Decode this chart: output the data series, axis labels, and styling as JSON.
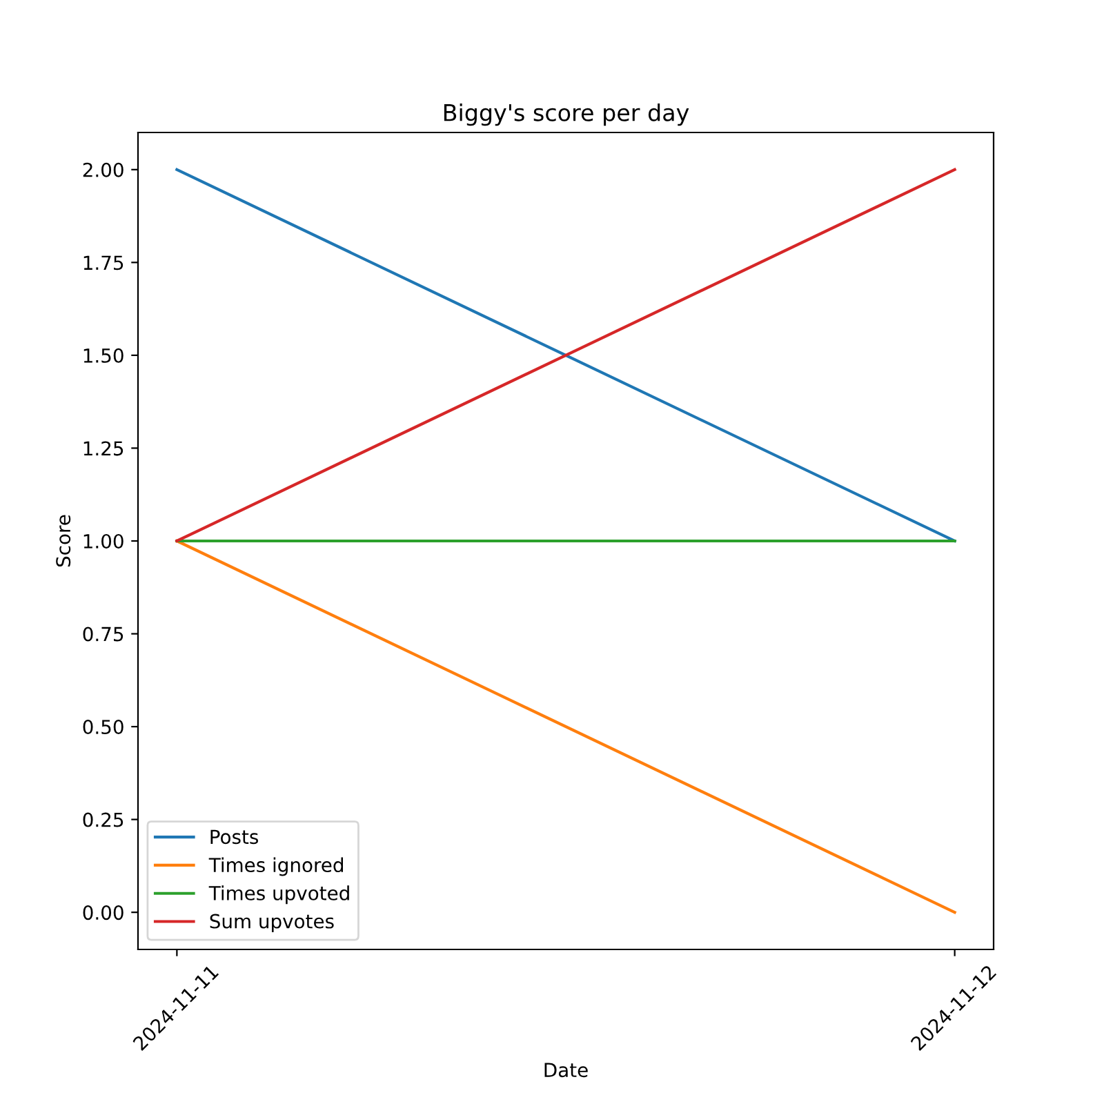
{
  "chart_data": {
    "type": "line",
    "title": "Biggy's score per day",
    "xlabel": "Date",
    "ylabel": "Score",
    "x": [
      "2024-11-11",
      "2024-11-12"
    ],
    "xlim": [
      "2024-11-10T22:48",
      "2024-11-12T01:12"
    ],
    "xticks": [
      {
        "value": "2024-11-11",
        "label": "2024-11-11"
      },
      {
        "value": "2024-11-12",
        "label": "2024-11-12"
      }
    ],
    "ylim": [
      -0.1,
      2.1
    ],
    "yticks": [
      {
        "value": 0,
        "label": "0.00"
      },
      {
        "value": 0.25,
        "label": "0.25"
      },
      {
        "value": 0.5,
        "label": "0.50"
      },
      {
        "value": 0.75,
        "label": "0.75"
      },
      {
        "value": 1,
        "label": "1.00"
      },
      {
        "value": 1.25,
        "label": "1.25"
      },
      {
        "value": 1.5,
        "label": "1.50"
      },
      {
        "value": 1.75,
        "label": "1.75"
      },
      {
        "value": 2,
        "label": "2.00"
      }
    ],
    "legend": "bottom left",
    "grid": false,
    "marker": "none",
    "line_style": "solid",
    "series": [
      {
        "name": "Posts",
        "color": "#1f77b4",
        "values": [
          2,
          1
        ]
      },
      {
        "name": "Times ignored",
        "color": "#ff7f0e",
        "values": [
          1,
          0
        ]
      },
      {
        "name": "Times upvoted",
        "color": "#2ca02c",
        "values": [
          1,
          1
        ]
      },
      {
        "name": "Sum upvotes",
        "color": "#d62728",
        "values": [
          1,
          2
        ]
      }
    ]
  }
}
